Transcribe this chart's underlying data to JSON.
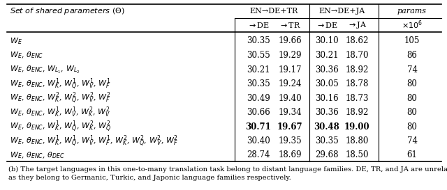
{
  "col_header": "Set of shared parameters (Θ)",
  "header1_labels": [
    "EN→DE+TR",
    "EN→DE+JA",
    "params"
  ],
  "header2_labels": [
    "→DE",
    "→TR",
    "→DE",
    "→JA",
    "×10⁶"
  ],
  "row_labels": [
    "$W_E$",
    "$W_E$, $\\theta_{ENC}$",
    "$W_E$, $\\theta_{ENC}$, $W_{L_1}$, $W_{L_2}$",
    "$W_E$, $\\theta_{ENC}$, $W_K^1$, $W_Q^1$, $W_V^1$, $W_F^1$",
    "$W_E$, $\\theta_{ENC}$, $W_K^2$, $W_Q^2$, $W_V^2$, $W_F^2$",
    "$W_E$, $\\theta_{ENC}$, $W_K^1$, $W_V^1$, $W_K^2$, $W_V^2$",
    "$W_E$, $\\theta_{ENC}$, $W_K^1$, $W_Q^1$, $W_K^2$, $W_Q^2$",
    "$W_E$, $\\theta_{ENC}$, $W_K^1$, $W_Q^1$, $W_V^1$, $W_F^1$, $W_K^2$, $W_Q^2$, $W_V^2$, $W_F^2$",
    "$W_E$, $\\theta_{ENC}$, $\\theta_{DEC}$"
  ],
  "values": [
    [
      "30.35",
      "19.66",
      "30.10",
      "18.62",
      "105"
    ],
    [
      "30.55",
      "19.29",
      "30.21",
      "18.70",
      "86"
    ],
    [
      "30.21",
      "19.17",
      "30.36",
      "18.92",
      "74"
    ],
    [
      "30.35",
      "19.24",
      "30.05",
      "18.78",
      "80"
    ],
    [
      "30.49",
      "19.40",
      "30.16",
      "18.73",
      "80"
    ],
    [
      "30.66",
      "19.34",
      "30.36",
      "18.92",
      "80"
    ],
    [
      "30.71",
      "19.67",
      "30.48",
      "19.00",
      "80"
    ],
    [
      "30.40",
      "19.35",
      "30.35",
      "18.80",
      "74"
    ],
    [
      "28.74",
      "18.69",
      "29.68",
      "18.50",
      "61"
    ]
  ],
  "bold_row": 6,
  "bold_cols": [
    0,
    1,
    2,
    3
  ],
  "caption_line1": "(b) The target languages in this one-to-many translation task belong to distant language families. DE, TR, and JA are unrelated",
  "caption_line2": "as they belong to Germanic, Turkic, and Japonic language families respectively.",
  "caption_italic_words": [
    "one-to-many",
    "Germanic,",
    "Turkic,",
    "Japonic"
  ],
  "bg_color": "#ffffff"
}
